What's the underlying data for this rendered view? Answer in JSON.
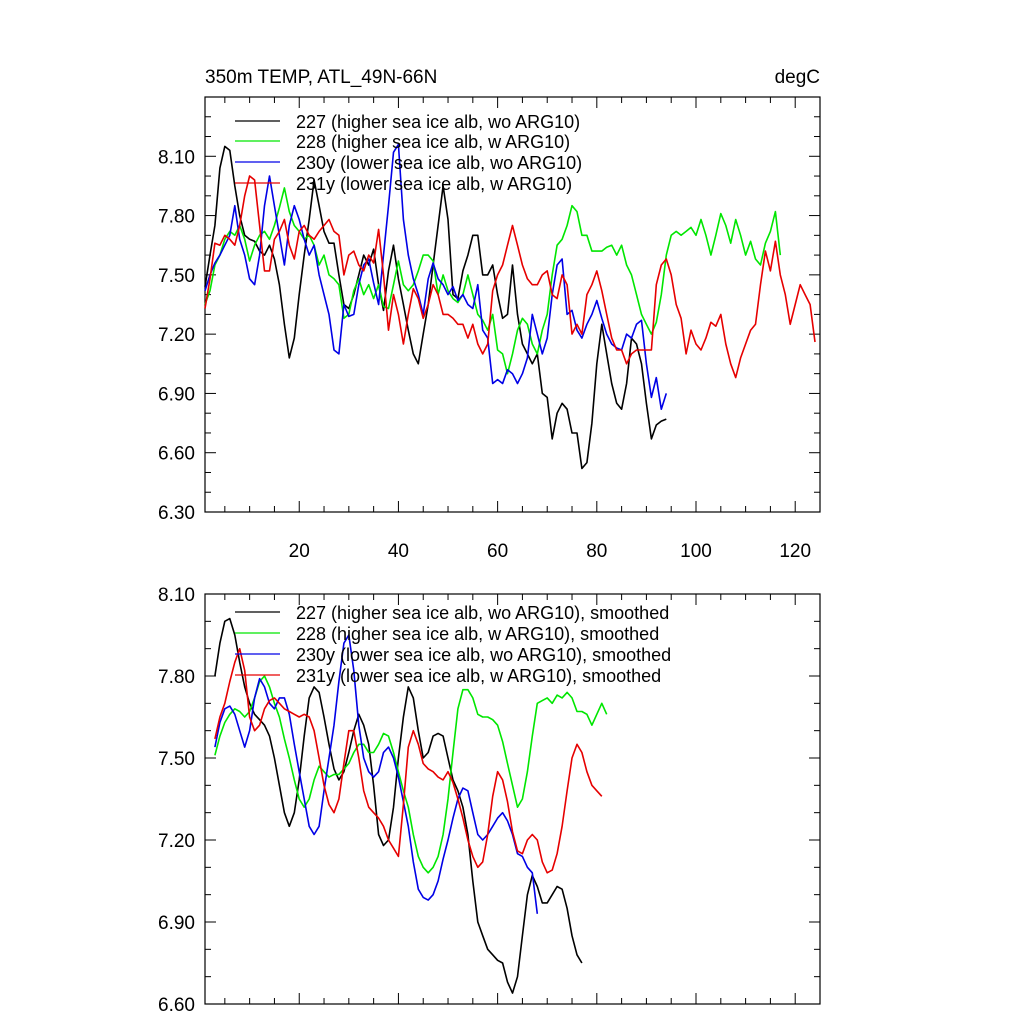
{
  "chart_data": [
    {
      "type": "line",
      "title": "350m TEMP, ATL_49N-66N",
      "units": "degC",
      "xlim": [
        1,
        125
      ],
      "ylim": [
        6.3,
        8.4
      ],
      "x_ticks": [
        20,
        40,
        60,
        80,
        100,
        120
      ],
      "x_tick_labels": [
        "20",
        "40",
        "60",
        "80",
        "100",
        "120"
      ],
      "y_ticks": [
        6.3,
        6.6,
        6.9,
        7.2,
        7.5,
        7.8,
        8.1
      ],
      "y_tick_labels": [
        "6.30",
        "6.60",
        "6.90",
        "7.20",
        "7.50",
        "7.80",
        "8.10"
      ],
      "series": [
        {
          "name": "227 (higher sea ice alb, wo ARG10)",
          "color": "#000000",
          "values": [
            7.44,
            7.6,
            7.75,
            8.04,
            8.15,
            8.13,
            7.95,
            7.8,
            7.7,
            7.68,
            7.67,
            7.62,
            7.6,
            7.65,
            7.58,
            7.45,
            7.25,
            7.08,
            7.18,
            7.4,
            7.6,
            7.78,
            7.98,
            7.85,
            7.72,
            7.66,
            7.66,
            7.5,
            7.35,
            7.33,
            7.4,
            7.5,
            7.6,
            7.55,
            7.63,
            7.45,
            7.32,
            7.52,
            7.65,
            7.48,
            7.35,
            7.22,
            7.1,
            7.05,
            7.2,
            7.35,
            7.55,
            7.75,
            7.95,
            7.78,
            7.4,
            7.38,
            7.52,
            7.6,
            7.7,
            7.7,
            7.5,
            7.5,
            7.55,
            7.4,
            7.28,
            7.3,
            7.55,
            7.3,
            7.15,
            7.1,
            7.05,
            7.1,
            6.9,
            6.88,
            6.67,
            6.8,
            6.85,
            6.82,
            6.7,
            6.7,
            6.52,
            6.55,
            6.75,
            7.05,
            7.25,
            7.1,
            6.95,
            6.85,
            6.82,
            6.95,
            7.18,
            7.15,
            7.05,
            6.85,
            6.67,
            6.74,
            6.76,
            6.77
          ]
        },
        {
          "name": "228 (higher sea ice alb, w ARG10)",
          "color": "#00e600",
          "values": [
            7.35,
            7.42,
            7.55,
            7.6,
            7.68,
            7.72,
            7.7,
            7.75,
            7.68,
            7.57,
            7.65,
            7.7,
            7.72,
            7.68,
            7.75,
            7.84,
            7.94,
            7.82,
            7.75,
            7.72,
            7.68,
            7.7,
            7.65,
            7.55,
            7.6,
            7.5,
            7.48,
            7.45,
            7.28,
            7.3,
            7.42,
            7.48,
            7.4,
            7.45,
            7.38,
            7.45,
            7.34,
            7.33,
            7.45,
            7.57,
            7.45,
            7.42,
            7.45,
            7.52,
            7.6,
            7.6,
            7.57,
            7.4,
            7.5,
            7.42,
            7.38,
            7.36,
            7.4,
            7.5,
            7.4,
            7.3,
            7.27,
            7.22,
            7.3,
            7.12,
            7.1,
            7.0,
            7.1,
            7.22,
            7.28,
            7.25,
            7.15,
            7.1,
            7.22,
            7.3,
            7.5,
            7.65,
            7.68,
            7.75,
            7.85,
            7.82,
            7.7,
            7.7,
            7.62,
            7.62,
            7.62,
            7.64,
            7.65,
            7.6,
            7.65,
            7.55,
            7.5,
            7.4,
            7.3,
            7.25,
            7.2,
            7.26,
            7.4,
            7.6,
            7.7,
            7.72,
            7.7,
            7.72,
            7.74,
            7.7,
            7.78,
            7.7,
            7.6,
            7.7,
            7.81,
            7.75,
            7.66,
            7.78,
            7.7,
            7.6,
            7.67,
            7.58,
            7.55,
            7.66,
            7.72,
            7.82,
            7.6
          ]
        },
        {
          "name": "230y (lower sea ice alb, wo ARG10)",
          "color": "#0000e6",
          "values": [
            7.42,
            7.5,
            7.56,
            7.6,
            7.65,
            7.7,
            7.85,
            7.68,
            7.6,
            7.48,
            7.45,
            7.6,
            7.85,
            8.0,
            7.85,
            7.7,
            7.55,
            7.75,
            7.85,
            7.78,
            7.68,
            7.6,
            7.65,
            7.5,
            7.4,
            7.3,
            7.12,
            7.1,
            7.35,
            7.29,
            7.3,
            7.45,
            7.55,
            7.58,
            7.46,
            7.35,
            7.6,
            7.85,
            8.12,
            8.16,
            7.78,
            7.6,
            7.48,
            7.4,
            7.3,
            7.48,
            7.56,
            7.48,
            7.45,
            7.4,
            7.44,
            7.37,
            7.4,
            7.35,
            7.33,
            7.45,
            7.22,
            7.18,
            6.95,
            6.97,
            6.95,
            7.02,
            7.0,
            6.95,
            7.0,
            7.08,
            7.3,
            7.2,
            7.1,
            7.18,
            7.4,
            7.55,
            7.58,
            7.3,
            7.32,
            7.22,
            7.18,
            7.25,
            7.3,
            7.37,
            7.28,
            7.2,
            7.15,
            7.13,
            7.12,
            7.2,
            7.18,
            7.25,
            7.27,
            7.05,
            6.88,
            6.98,
            6.82,
            6.9
          ]
        },
        {
          "name": "231y (lower sea ice alb, w ARG10)",
          "color": "#e60000",
          "values": [
            7.33,
            7.48,
            7.66,
            7.65,
            7.7,
            7.68,
            7.65,
            7.75,
            7.9,
            8.0,
            7.98,
            7.75,
            7.52,
            7.52,
            7.68,
            7.72,
            7.78,
            7.65,
            7.58,
            7.72,
            7.75,
            7.7,
            7.68,
            7.72,
            7.75,
            7.78,
            7.72,
            7.7,
            7.5,
            7.6,
            7.62,
            7.55,
            7.52,
            7.6,
            7.56,
            7.73,
            7.5,
            7.22,
            7.4,
            7.3,
            7.15,
            7.3,
            7.43,
            7.38,
            7.28,
            7.35,
            7.45,
            7.4,
            7.3,
            7.3,
            7.28,
            7.25,
            7.25,
            7.18,
            7.25,
            7.15,
            7.1,
            7.15,
            7.42,
            7.5,
            7.55,
            7.65,
            7.75,
            7.65,
            7.55,
            7.48,
            7.45,
            7.45,
            7.5,
            7.52,
            7.4,
            7.38,
            7.5,
            7.45,
            7.2,
            7.25,
            7.2,
            7.4,
            7.45,
            7.52,
            7.42,
            7.3,
            7.18,
            7.12,
            7.12,
            7.05,
            7.1,
            7.12,
            7.12,
            7.12,
            7.12,
            7.45,
            7.55,
            7.58,
            7.5,
            7.35,
            7.28,
            7.1,
            7.22,
            7.15,
            7.12,
            7.18,
            7.26,
            7.24,
            7.3,
            7.15,
            7.05,
            6.98,
            7.08,
            7.15,
            7.22,
            7.25,
            7.45,
            7.62,
            7.52,
            7.67,
            7.5,
            7.4,
            7.25,
            7.35,
            7.45,
            7.4,
            7.35,
            7.16
          ]
        }
      ]
    },
    {
      "type": "line",
      "title": "",
      "units": "",
      "xlim": [
        1,
        125
      ],
      "ylim": [
        6.6,
        8.1
      ],
      "x_ticks": [
        20,
        40,
        60,
        80,
        100,
        120
      ],
      "x_tick_labels": [],
      "y_ticks": [
        6.6,
        6.9,
        7.2,
        7.5,
        7.8,
        8.1
      ],
      "y_tick_labels": [
        "6.60",
        "6.90",
        "7.20",
        "7.50",
        "7.80",
        "8.10"
      ],
      "series": [
        {
          "name": "227 (higher sea ice alb, wo ARG10), smoothed",
          "color": "#000000",
          "x_start": 3,
          "values": [
            7.8,
            7.92,
            8.0,
            8.01,
            7.95,
            7.85,
            7.76,
            7.7,
            7.66,
            7.64,
            7.62,
            7.58,
            7.5,
            7.4,
            7.3,
            7.25,
            7.3,
            7.42,
            7.58,
            7.72,
            7.76,
            7.74,
            7.65,
            7.55,
            7.46,
            7.42,
            7.45,
            7.52,
            7.6,
            7.66,
            7.62,
            7.55,
            7.4,
            7.22,
            7.18,
            7.2,
            7.32,
            7.5,
            7.65,
            7.76,
            7.72,
            7.6,
            7.5,
            7.52,
            7.58,
            7.59,
            7.58,
            7.5,
            7.42,
            7.38,
            7.32,
            7.22,
            7.05,
            6.9,
            6.85,
            6.8,
            6.78,
            6.76,
            6.75,
            6.68,
            6.64,
            6.7,
            6.85,
            7.0,
            7.07,
            7.03,
            6.97,
            6.97,
            7.0,
            7.03,
            7.02,
            6.95,
            6.85,
            6.78,
            6.75
          ]
        },
        {
          "name": "228 (higher sea ice alb, w ARG10), smoothed",
          "color": "#00e600",
          "x_start": 3,
          "values": [
            7.51,
            7.58,
            7.63,
            7.66,
            7.68,
            7.67,
            7.65,
            7.67,
            7.72,
            7.78,
            7.8,
            7.76,
            7.7,
            7.65,
            7.57,
            7.5,
            7.42,
            7.35,
            7.32,
            7.35,
            7.42,
            7.47,
            7.45,
            7.43,
            7.44,
            7.44,
            7.46,
            7.48,
            7.52,
            7.55,
            7.55,
            7.52,
            7.52,
            7.55,
            7.59,
            7.58,
            7.52,
            7.45,
            7.38,
            7.32,
            7.22,
            7.14,
            7.1,
            7.08,
            7.1,
            7.14,
            7.22,
            7.35,
            7.52,
            7.68,
            7.75,
            7.75,
            7.72,
            7.66,
            7.65,
            7.65,
            7.64,
            7.62,
            7.56,
            7.48,
            7.4,
            7.32,
            7.35,
            7.45,
            7.58,
            7.7,
            7.71,
            7.72,
            7.7,
            7.73,
            7.72,
            7.74,
            7.72,
            7.67,
            7.67,
            7.66,
            7.62,
            7.66,
            7.7,
            7.66
          ]
        },
        {
          "name": "230y (lower sea ice alb, wo ARG10), smoothed",
          "color": "#0000e6",
          "x_start": 3,
          "values": [
            7.54,
            7.63,
            7.68,
            7.69,
            7.66,
            7.6,
            7.54,
            7.6,
            7.72,
            7.79,
            7.76,
            7.7,
            7.68,
            7.72,
            7.72,
            7.66,
            7.55,
            7.45,
            7.35,
            7.25,
            7.22,
            7.25,
            7.38,
            7.5,
            7.62,
            7.78,
            7.92,
            7.95,
            7.82,
            7.62,
            7.5,
            7.45,
            7.43,
            7.45,
            7.52,
            7.54,
            7.5,
            7.43,
            7.34,
            7.25,
            7.12,
            7.02,
            6.99,
            6.98,
            7.0,
            7.05,
            7.13,
            7.2,
            7.28,
            7.35,
            7.39,
            7.38,
            7.3,
            7.22,
            7.2,
            7.22,
            7.25,
            7.28,
            7.3,
            7.27,
            7.22,
            7.15,
            7.14,
            7.1,
            7.08,
            6.93
          ]
        },
        {
          "name": "231y (lower sea ice alb, w ARG10), smoothed",
          "color": "#e60000",
          "x_start": 3,
          "values": [
            7.57,
            7.65,
            7.7,
            7.78,
            7.85,
            7.9,
            7.82,
            7.65,
            7.6,
            7.62,
            7.68,
            7.71,
            7.72,
            7.7,
            7.68,
            7.67,
            7.66,
            7.65,
            7.66,
            7.65,
            7.6,
            7.5,
            7.4,
            7.33,
            7.3,
            7.35,
            7.48,
            7.6,
            7.6,
            7.5,
            7.38,
            7.32,
            7.3,
            7.28,
            7.25,
            7.2,
            7.17,
            7.14,
            7.33,
            7.54,
            7.6,
            7.55,
            7.48,
            7.46,
            7.45,
            7.43,
            7.42,
            7.45,
            7.41,
            7.35,
            7.28,
            7.2,
            7.14,
            7.1,
            7.12,
            7.22,
            7.36,
            7.45,
            7.42,
            7.34,
            7.23,
            7.16,
            7.15,
            7.2,
            7.22,
            7.2,
            7.12,
            7.08,
            7.09,
            7.15,
            7.25,
            7.38,
            7.5,
            7.55,
            7.52,
            7.45,
            7.4,
            7.38,
            7.36
          ]
        }
      ]
    }
  ]
}
